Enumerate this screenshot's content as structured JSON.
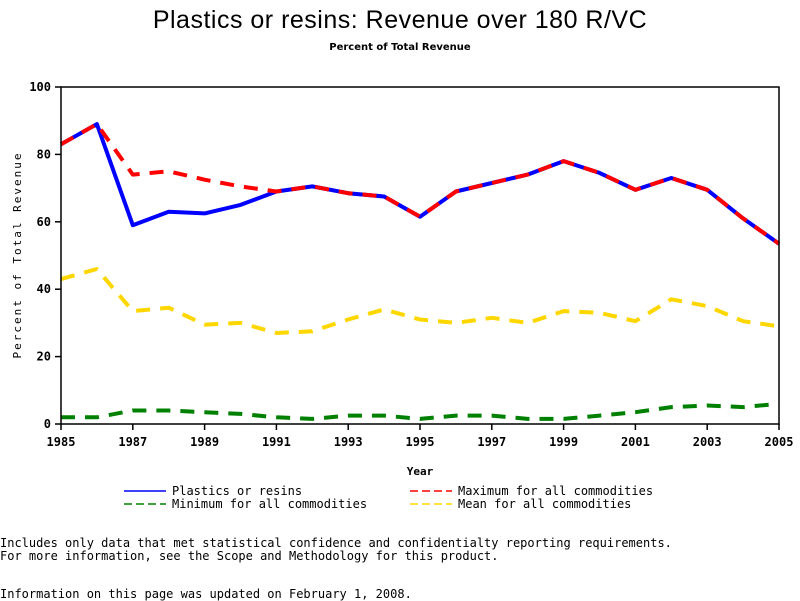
{
  "chart_data": {
    "type": "line",
    "title": "Plastics or resins: Revenue over 180 R/VC",
    "subtitle": "Percent of Total Revenue",
    "xlabel": "Year",
    "ylabel": "Percent of Total Revenue",
    "xlim": [
      1985,
      2005
    ],
    "ylim": [
      0,
      100
    ],
    "x_ticks": [
      "1985",
      "1987",
      "1989",
      "1991",
      "1993",
      "1995",
      "1997",
      "1999",
      "2001",
      "2003",
      "2005"
    ],
    "y_ticks": [
      "0",
      "20",
      "40",
      "60",
      "80",
      "100"
    ],
    "grid": false,
    "legend_position": "bottom",
    "x": [
      1985,
      1986,
      1987,
      1988,
      1989,
      1990,
      1991,
      1992,
      1993,
      1994,
      1995,
      1996,
      1997,
      1998,
      1999,
      2000,
      2001,
      2002,
      2003,
      2004,
      2005
    ],
    "series": [
      {
        "name": "Plastics or resins",
        "color": "#0000ff",
        "style": "solid",
        "values": [
          83,
          89,
          59,
          63,
          62.5,
          65,
          69,
          70.5,
          68.5,
          67.5,
          61.5,
          69,
          71.5,
          74,
          78,
          74.5,
          69.5,
          73,
          69.5,
          61,
          53.5
        ]
      },
      {
        "name": "Maximum for all commodities",
        "color": "#ff0000",
        "style": "dashed",
        "values": [
          83,
          89,
          74,
          75,
          72.5,
          70.5,
          69,
          70.5,
          68.5,
          67.5,
          61.5,
          69,
          71.5,
          74,
          78,
          74.5,
          69.5,
          73,
          69.5,
          61,
          53.5
        ]
      },
      {
        "name": "Minimum for all commodities",
        "color": "#008000",
        "style": "dashed",
        "values": [
          2,
          2,
          4,
          4,
          3.5,
          3,
          2,
          1.5,
          2.5,
          2.5,
          1.5,
          2.5,
          2.5,
          1.5,
          1.5,
          2.5,
          3.5,
          5,
          5.5,
          5,
          6
        ]
      },
      {
        "name": "Mean for all commodities",
        "color": "#ffd700",
        "style": "dashed",
        "values": [
          43,
          46,
          33.5,
          34.5,
          29.5,
          30,
          27,
          27.5,
          31,
          34,
          31,
          30,
          31.5,
          30,
          33.5,
          33,
          30.5,
          37,
          35,
          30.5,
          29
        ]
      }
    ]
  },
  "footnotes": {
    "line1": "Includes only data that met statistical confidence and confidentialty reporting requirements.",
    "line2": "For more information, see the Scope and Methodology for this product.",
    "updated": "Information on this page was updated on February 1, 2008."
  }
}
